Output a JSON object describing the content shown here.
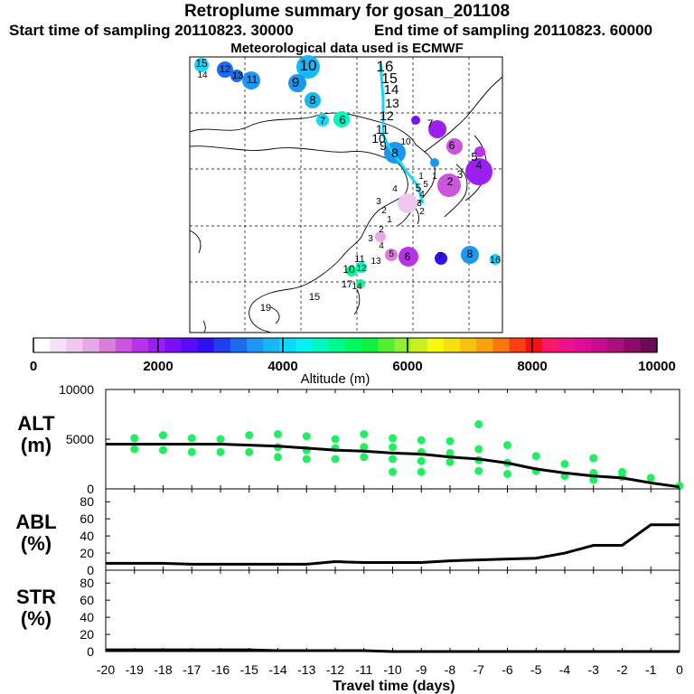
{
  "header": {
    "title": "Retroplume summary for gosan_201108",
    "start_label": "Start time of sampling 20110823. 30000",
    "end_label": "End time of sampling 20110823. 60000",
    "met_label": "Meteorological data used is ECMWF"
  },
  "colorbar": {
    "ticks": [
      "0",
      "2000",
      "4000",
      "6000",
      "8000",
      "10000"
    ],
    "label": "Altitude (m)",
    "colors": [
      "#ffffff",
      "#f6e2f6",
      "#efc7ef",
      "#e5a9e5",
      "#d97fd9",
      "#cc55dd",
      "#b733e8",
      "#9a1ff0",
      "#7a10f8",
      "#5a0cf8",
      "#3010f0",
      "#2040f0",
      "#1c6cf0",
      "#1c96f0",
      "#18b8f4",
      "#10d8f8",
      "#08f0f0",
      "#00f8c0",
      "#00f890",
      "#00f860",
      "#10f040",
      "#50f030",
      "#90f030",
      "#c8f020",
      "#f8f810",
      "#f8e010",
      "#f8c010",
      "#f8a010",
      "#f87810",
      "#f84010",
      "#f81010",
      "#f81868",
      "#f0108c",
      "#e00c98",
      "#c80c90",
      "#a8107c",
      "#8a0c68",
      "#6c0a58"
    ]
  },
  "map": {
    "numbers": [
      "15",
      "14",
      "12",
      "13",
      "11",
      "10",
      "9",
      "8",
      "7",
      "6",
      "16",
      "15",
      "14",
      "13",
      "12",
      "11",
      "10",
      "9",
      "8",
      "7",
      "6",
      "5",
      "4",
      "3",
      "2",
      "1",
      "5",
      "4",
      "3",
      "2",
      "1",
      "3",
      "2",
      "1",
      "4",
      "5",
      "2",
      "3",
      "4",
      "5",
      "6",
      "7",
      "8",
      "16",
      "10",
      "11",
      "17",
      "15",
      "19",
      "14",
      "12",
      "13",
      "10"
    ]
  },
  "chart_data": [
    {
      "type": "scatter",
      "name": "ALT",
      "ylabel": "ALT (m)",
      "ylim": [
        0,
        10000
      ],
      "yticks": [
        "10000",
        "5000",
        "0"
      ],
      "xlim": [
        -20,
        0
      ],
      "x": [
        -20,
        -19,
        -18,
        -17,
        -16,
        -15,
        -14,
        -13,
        -12,
        -11,
        -10,
        -9,
        -8,
        -7,
        -6,
        -5,
        -4,
        -3,
        -2,
        -1,
        0
      ],
      "mean_altitude": [
        4500,
        4500,
        4500,
        4500,
        4500,
        4400,
        4300,
        4100,
        3900,
        3800,
        3600,
        3500,
        3200,
        3000,
        2600,
        2000,
        1600,
        1300,
        1100,
        600,
        200
      ],
      "points": [
        {
          "x": -19,
          "y": 5100
        },
        {
          "x": -19,
          "y": 4000
        },
        {
          "x": -18,
          "y": 5400
        },
        {
          "x": -18,
          "y": 3900
        },
        {
          "x": -17,
          "y": 5100
        },
        {
          "x": -17,
          "y": 3700
        },
        {
          "x": -16,
          "y": 5000
        },
        {
          "x": -16,
          "y": 3700
        },
        {
          "x": -15,
          "y": 5400
        },
        {
          "x": -15,
          "y": 3700
        },
        {
          "x": -14,
          "y": 5500
        },
        {
          "x": -14,
          "y": 4200
        },
        {
          "x": -14,
          "y": 3200
        },
        {
          "x": -13,
          "y": 5300
        },
        {
          "x": -13,
          "y": 3900
        },
        {
          "x": -13,
          "y": 3000
        },
        {
          "x": -12,
          "y": 5000
        },
        {
          "x": -12,
          "y": 4100
        },
        {
          "x": -12,
          "y": 3000
        },
        {
          "x": -11,
          "y": 5500
        },
        {
          "x": -11,
          "y": 4200
        },
        {
          "x": -11,
          "y": 3200
        },
        {
          "x": -10,
          "y": 5100
        },
        {
          "x": -10,
          "y": 4200
        },
        {
          "x": -10,
          "y": 3000
        },
        {
          "x": -10,
          "y": 1700
        },
        {
          "x": -9,
          "y": 4900
        },
        {
          "x": -9,
          "y": 3700
        },
        {
          "x": -9,
          "y": 2800
        },
        {
          "x": -9,
          "y": 1700
        },
        {
          "x": -8,
          "y": 4800
        },
        {
          "x": -8,
          "y": 3600
        },
        {
          "x": -8,
          "y": 2700
        },
        {
          "x": -7,
          "y": 6500
        },
        {
          "x": -7,
          "y": 4000
        },
        {
          "x": -7,
          "y": 2900
        },
        {
          "x": -7,
          "y": 1800
        },
        {
          "x": -6,
          "y": 4400
        },
        {
          "x": -6,
          "y": 2600
        },
        {
          "x": -6,
          "y": 1500
        },
        {
          "x": -5,
          "y": 3300
        },
        {
          "x": -5,
          "y": 1800
        },
        {
          "x": -4,
          "y": 2500
        },
        {
          "x": -4,
          "y": 1300
        },
        {
          "x": -3,
          "y": 3100
        },
        {
          "x": -3,
          "y": 1600
        },
        {
          "x": -3,
          "y": 900
        },
        {
          "x": -2,
          "y": 1700
        },
        {
          "x": -2,
          "y": 1200
        },
        {
          "x": -1,
          "y": 1100
        },
        {
          "x": 0,
          "y": 300
        }
      ]
    },
    {
      "type": "line",
      "name": "ABL",
      "ylabel": "ABL (%)",
      "ylim": [
        0,
        95
      ],
      "yticks": [
        "80",
        "60",
        "40",
        "20",
        "0"
      ],
      "x": [
        -20,
        -19,
        -18,
        -17,
        -16,
        -15,
        -14,
        -13,
        -12,
        -11,
        -10,
        -9,
        -8,
        -7,
        -6,
        -5,
        -4,
        -3,
        -2,
        -1,
        0
      ],
      "values": [
        8,
        8,
        8,
        7,
        7,
        7,
        7,
        7,
        10,
        9,
        9,
        9,
        11,
        12,
        13,
        14,
        20,
        29,
        29,
        53,
        53
      ]
    },
    {
      "type": "line",
      "name": "STR",
      "ylabel": "STR (%)",
      "ylim": [
        0,
        95
      ],
      "yticks": [
        "80",
        "60",
        "40",
        "20",
        "0"
      ],
      "x": [
        -20,
        -19,
        -18,
        -17,
        -16,
        -15,
        -14,
        -13,
        -12,
        -11,
        -10,
        -9,
        -8,
        -7,
        -6,
        -5,
        -4,
        -3,
        -2,
        -1,
        0
      ],
      "values": [
        2,
        2,
        2,
        2,
        2,
        2,
        1,
        1,
        1,
        1,
        0,
        0,
        0,
        0,
        0,
        0,
        0,
        0,
        0,
        0,
        0
      ]
    }
  ],
  "xaxis": {
    "xlabel": "Travel time (days)",
    "ticks": [
      "-20",
      "-19",
      "-18",
      "-17",
      "-16",
      "-15",
      "-14",
      "-13",
      "-12",
      "-11",
      "-10",
      "-9",
      "-8",
      "-7",
      "-6",
      "-5",
      "-4",
      "-3",
      "-2",
      "-1",
      "0"
    ]
  },
  "panels": {
    "alt_title": "ALT",
    "alt_unit": "(m)",
    "abl_title": "ABL",
    "abl_unit": "(%)",
    "str_title": "STR",
    "str_unit": "(%)"
  }
}
